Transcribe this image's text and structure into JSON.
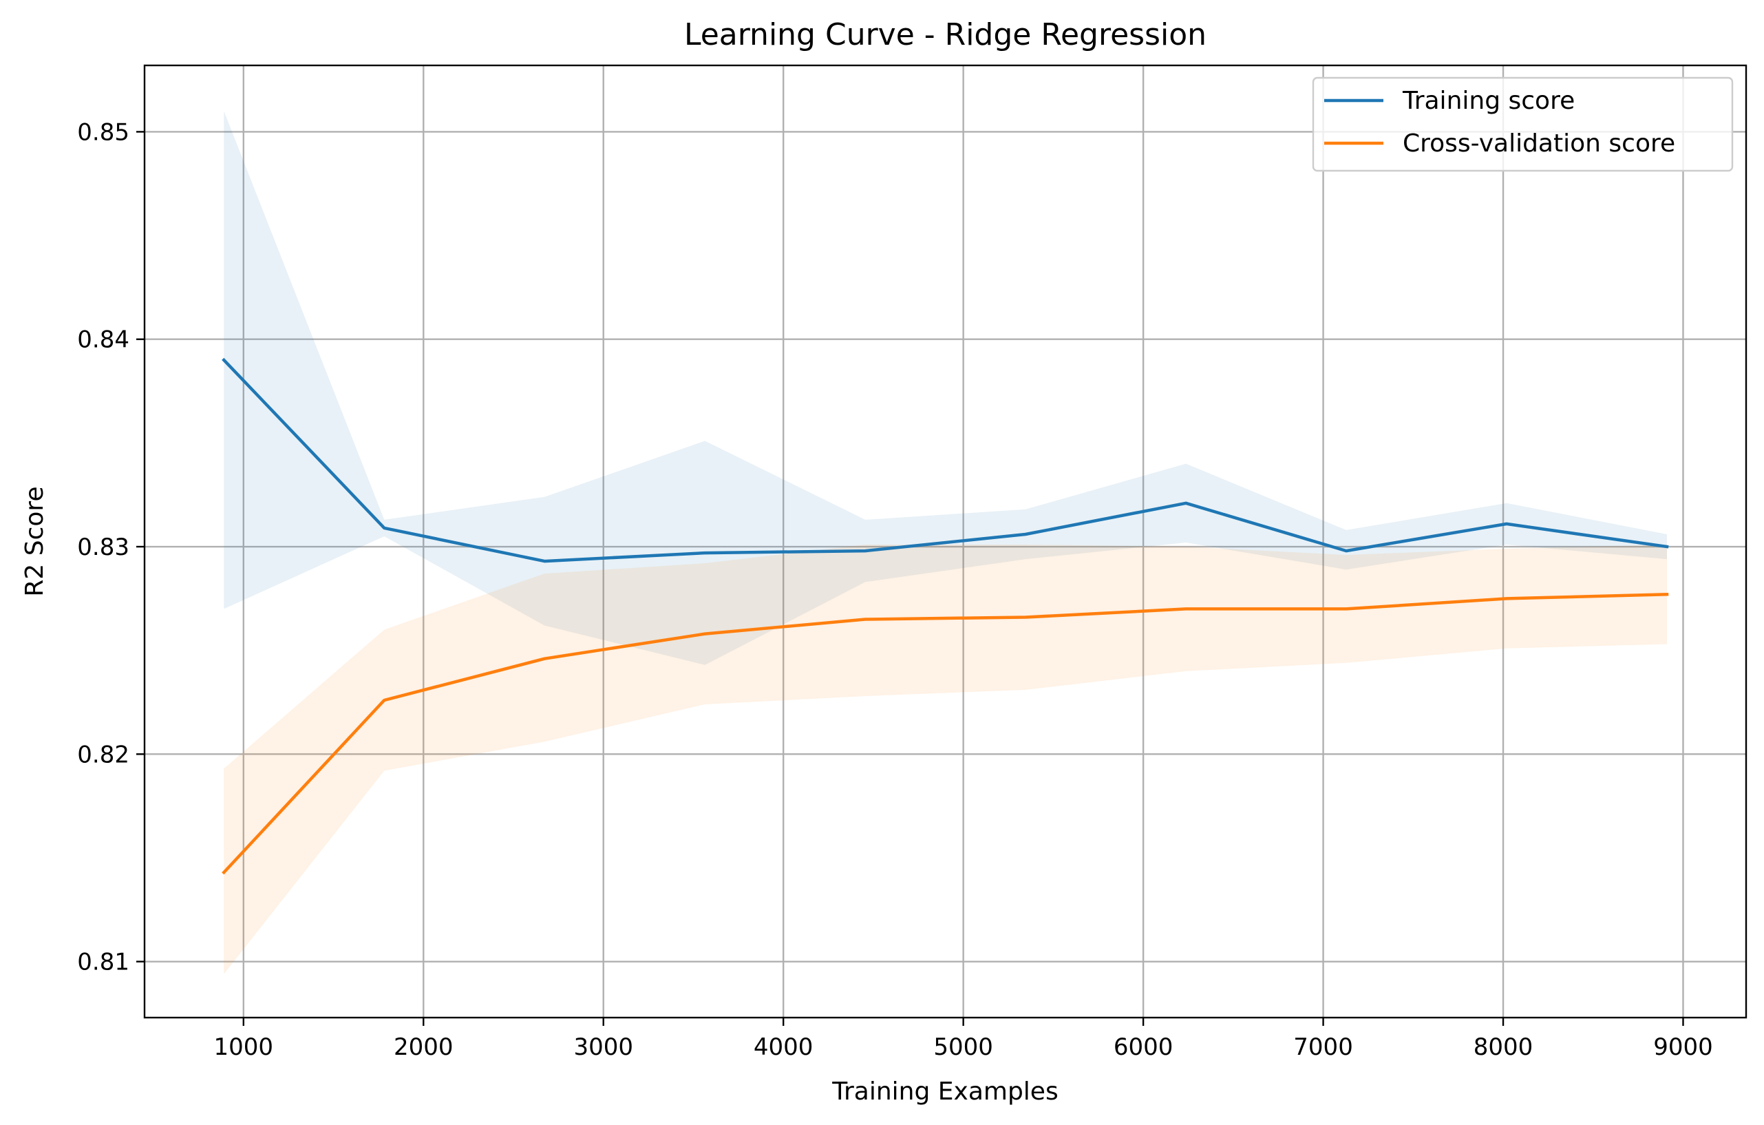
{
  "chart_data": {
    "type": "line",
    "title": "Learning Curve - Ridge Regression",
    "xlabel": "Training Examples",
    "ylabel": "R2 Score",
    "xlim": [
      450,
      9350
    ],
    "ylim": [
      0.8073,
      0.8532
    ],
    "xticks": [
      1000,
      2000,
      3000,
      4000,
      5000,
      6000,
      7000,
      8000,
      9000
    ],
    "xtick_labels": [
      "1000",
      "2000",
      "3000",
      "4000",
      "5000",
      "6000",
      "7000",
      "8000",
      "9000"
    ],
    "yticks": [
      0.81,
      0.82,
      0.83,
      0.84,
      0.85
    ],
    "ytick_labels": [
      "0.81",
      "0.82",
      "0.83",
      "0.84",
      "0.85"
    ],
    "grid": true,
    "legend_position": "upper-right",
    "x": [
      891,
      1782,
      2673,
      3564,
      4455,
      5346,
      6237,
      7128,
      8019,
      8910
    ],
    "series": [
      {
        "name": "Training score",
        "color": "#1f77b4",
        "band_color": "#e6eef7",
        "values": [
          0.839,
          0.8309,
          0.8293,
          0.8297,
          0.8298,
          0.8306,
          0.8321,
          0.8298,
          0.8311,
          0.83
        ],
        "upper": [
          0.851,
          0.8313,
          0.8324,
          0.8351,
          0.8313,
          0.8318,
          0.834,
          0.8308,
          0.8321,
          0.8306
        ],
        "lower": [
          0.827,
          0.8305,
          0.8262,
          0.8243,
          0.8283,
          0.8294,
          0.8302,
          0.8289,
          0.8301,
          0.8294
        ]
      },
      {
        "name": "Cross-validation score",
        "color": "#ff7f0e",
        "band_color": "#feecdc",
        "values": [
          0.8143,
          0.8226,
          0.8246,
          0.8258,
          0.8265,
          0.8266,
          0.827,
          0.827,
          0.8275,
          0.8277
        ],
        "upper": [
          0.8193,
          0.826,
          0.8287,
          0.8292,
          0.8301,
          0.8301,
          0.83,
          0.8296,
          0.8299,
          0.8301
        ],
        "lower": [
          0.8094,
          0.8192,
          0.8206,
          0.8224,
          0.8228,
          0.8231,
          0.824,
          0.8244,
          0.8251,
          0.8253
        ]
      }
    ]
  }
}
